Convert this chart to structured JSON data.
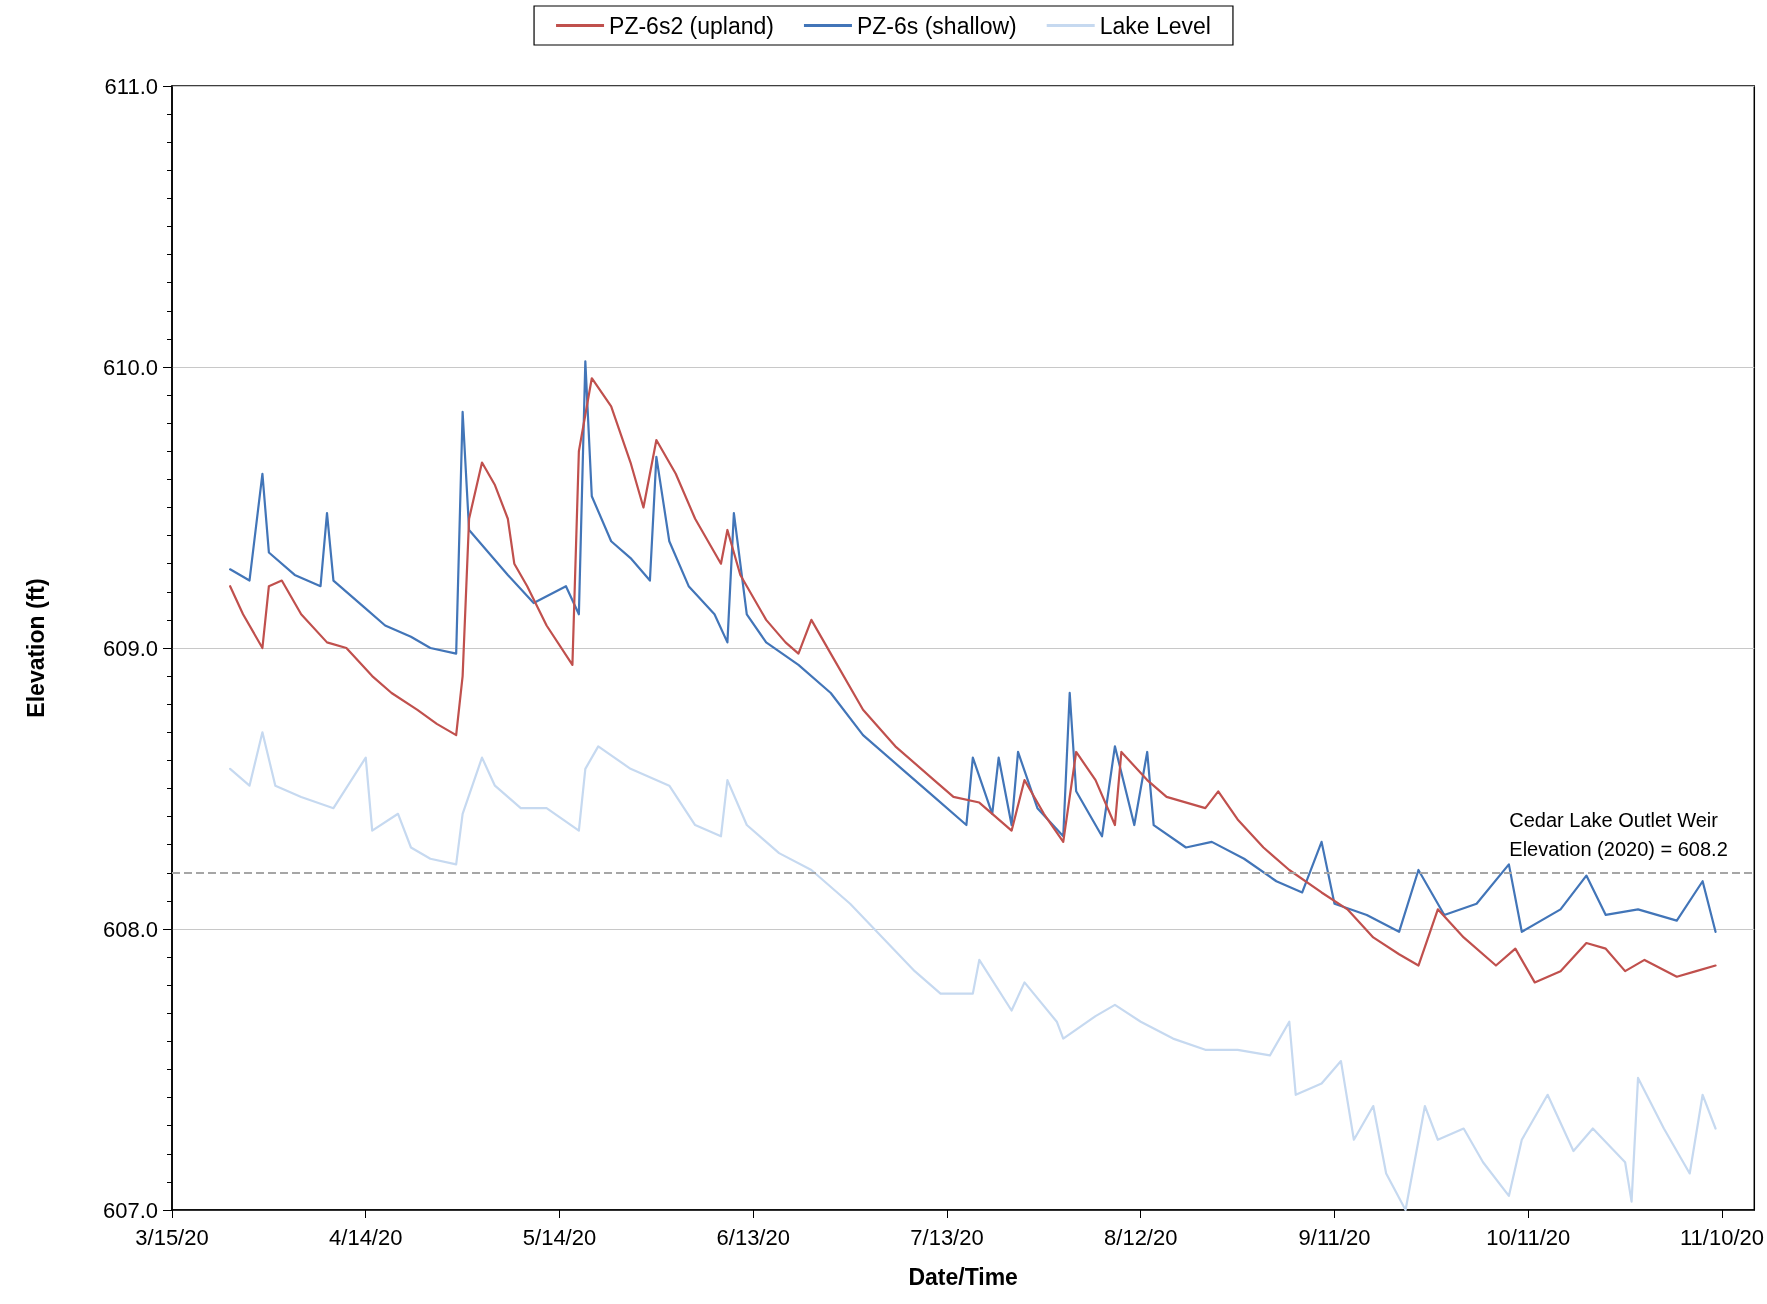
{
  "chart_data": {
    "type": "line",
    "xlabel": "Date/Time",
    "ylabel": "Elevation (ft)",
    "xlim": [
      "2020-03-15",
      "2020-11-15"
    ],
    "xticks": [
      {
        "value": "2020-03-15",
        "label": "3/15/20"
      },
      {
        "value": "2020-04-14",
        "label": "4/14/20"
      },
      {
        "value": "2020-05-14",
        "label": "5/14/20"
      },
      {
        "value": "2020-06-13",
        "label": "6/13/20"
      },
      {
        "value": "2020-07-13",
        "label": "7/13/20"
      },
      {
        "value": "2020-08-12",
        "label": "8/12/20"
      },
      {
        "value": "2020-09-11",
        "label": "9/11/20"
      },
      {
        "value": "2020-10-11",
        "label": "10/11/20"
      },
      {
        "value": "2020-11-10",
        "label": "11/10/20"
      }
    ],
    "ylim": [
      607,
      611
    ],
    "yticks": [
      {
        "value": 607,
        "label": "607.0"
      },
      {
        "value": 608,
        "label": "608.0"
      },
      {
        "value": 609,
        "label": "609.0"
      },
      {
        "value": 610,
        "label": "610.0"
      },
      {
        "value": 611,
        "label": "611.0"
      }
    ],
    "grid": "y",
    "legend": "top",
    "marker": "none",
    "line_style": "solid",
    "ref_lines": [
      {
        "axis": "y",
        "value": 608.2,
        "label": "Cedar Lake Outlet Weir\nElevation (2020) = 608.2",
        "color": "#a6a6a6",
        "line_style": "dashed"
      }
    ],
    "series": [
      {
        "name": "PZ-6s2 (upland)",
        "color": "#c0504d",
        "x": [
          "2020-03-24",
          "2020-03-26",
          "2020-03-29",
          "2020-03-30",
          "2020-04-01",
          "2020-04-04",
          "2020-04-08",
          "2020-04-11",
          "2020-04-15",
          "2020-04-18",
          "2020-04-22",
          "2020-04-25",
          "2020-04-28",
          "2020-04-29",
          "2020-04-30",
          "2020-05-02",
          "2020-05-04",
          "2020-05-06",
          "2020-05-07",
          "2020-05-09",
          "2020-05-12",
          "2020-05-16",
          "2020-05-17",
          "2020-05-19",
          "2020-05-22",
          "2020-05-25",
          "2020-05-27",
          "2020-05-29",
          "2020-06-01",
          "2020-06-04",
          "2020-06-08",
          "2020-06-09",
          "2020-06-11",
          "2020-06-15",
          "2020-06-18",
          "2020-06-20",
          "2020-06-22",
          "2020-06-25",
          "2020-06-30",
          "2020-07-05",
          "2020-07-11",
          "2020-07-14",
          "2020-07-18",
          "2020-07-23",
          "2020-07-25",
          "2020-07-28",
          "2020-07-31",
          "2020-08-02",
          "2020-08-05",
          "2020-08-08",
          "2020-08-09",
          "2020-08-13",
          "2020-08-16",
          "2020-08-22",
          "2020-08-24",
          "2020-08-27",
          "2020-08-31",
          "2020-09-04",
          "2020-09-09",
          "2020-09-13",
          "2020-09-17",
          "2020-09-21",
          "2020-09-24",
          "2020-09-27",
          "2020-10-01",
          "2020-10-06",
          "2020-10-09",
          "2020-10-12",
          "2020-10-16",
          "2020-10-20",
          "2020-10-23",
          "2020-10-26",
          "2020-10-29",
          "2020-11-03",
          "2020-11-06",
          "2020-11-09"
        ],
        "values": [
          609.22,
          609.12,
          609.0,
          609.22,
          609.24,
          609.12,
          609.02,
          609.0,
          608.9,
          608.84,
          608.78,
          608.73,
          608.69,
          608.9,
          609.46,
          609.66,
          609.58,
          609.46,
          609.3,
          609.22,
          609.08,
          608.94,
          609.7,
          609.96,
          609.86,
          609.66,
          609.5,
          609.74,
          609.62,
          609.46,
          609.3,
          609.42,
          609.26,
          609.1,
          609.02,
          608.98,
          609.1,
          608.98,
          608.78,
          608.65,
          608.53,
          608.47,
          608.45,
          608.35,
          608.53,
          608.41,
          608.31,
          608.63,
          608.53,
          608.37,
          608.63,
          608.53,
          608.47,
          608.43,
          608.49,
          608.39,
          608.29,
          608.21,
          608.13,
          608.07,
          607.97,
          607.91,
          607.87,
          608.07,
          607.97,
          607.87,
          607.93,
          607.81,
          607.85,
          607.95,
          607.93,
          607.85,
          607.89,
          607.83,
          607.85,
          607.87
        ]
      },
      {
        "name": "PZ-6s (shallow)",
        "color": "#4275b8",
        "x": [
          "2020-03-24",
          "2020-03-27",
          "2020-03-29",
          "2020-03-30",
          "2020-04-03",
          "2020-04-07",
          "2020-04-08",
          "2020-04-09",
          "2020-04-14",
          "2020-04-17",
          "2020-04-21",
          "2020-04-24",
          "2020-04-28",
          "2020-04-29",
          "2020-04-30",
          "2020-05-03",
          "2020-05-06",
          "2020-05-10",
          "2020-05-15",
          "2020-05-17",
          "2020-05-18",
          "2020-05-19",
          "2020-05-22",
          "2020-05-25",
          "2020-05-28",
          "2020-05-29",
          "2020-05-31",
          "2020-06-03",
          "2020-06-07",
          "2020-06-09",
          "2020-06-10",
          "2020-06-12",
          "2020-06-15",
          "2020-06-20",
          "2020-06-25",
          "2020-06-30",
          "2020-07-06",
          "2020-07-11",
          "2020-07-16",
          "2020-07-17",
          "2020-07-20",
          "2020-07-21",
          "2020-07-23",
          "2020-07-24",
          "2020-07-27",
          "2020-07-31",
          "2020-08-01",
          "2020-08-02",
          "2020-08-06",
          "2020-08-08",
          "2020-08-11",
          "2020-08-13",
          "2020-08-14",
          "2020-08-19",
          "2020-08-23",
          "2020-08-28",
          "2020-09-02",
          "2020-09-06",
          "2020-09-09",
          "2020-09-11",
          "2020-09-16",
          "2020-09-21",
          "2020-09-24",
          "2020-09-28",
          "2020-10-03",
          "2020-10-08",
          "2020-10-10",
          "2020-10-16",
          "2020-10-20",
          "2020-10-23",
          "2020-10-28",
          "2020-11-03",
          "2020-11-07",
          "2020-11-09"
        ],
        "values": [
          609.28,
          609.24,
          609.62,
          609.34,
          609.26,
          609.22,
          609.48,
          609.24,
          609.14,
          609.08,
          609.04,
          609.0,
          608.98,
          609.84,
          609.42,
          609.34,
          609.26,
          609.16,
          609.22,
          609.12,
          610.02,
          609.54,
          609.38,
          609.32,
          609.24,
          609.68,
          609.38,
          609.22,
          609.12,
          609.02,
          609.48,
          609.12,
          609.02,
          608.94,
          608.84,
          608.69,
          608.57,
          608.47,
          608.37,
          608.61,
          608.41,
          608.61,
          608.37,
          608.63,
          608.43,
          608.33,
          608.84,
          608.49,
          608.33,
          608.65,
          608.37,
          608.63,
          608.37,
          608.29,
          608.31,
          608.25,
          608.17,
          608.13,
          608.31,
          608.09,
          608.05,
          607.99,
          608.21,
          608.05,
          608.09,
          608.23,
          607.99,
          608.07,
          608.19,
          608.05,
          608.07,
          608.03,
          608.17,
          607.99
        ]
      },
      {
        "name": "Lake Level",
        "color": "#c6d9f0",
        "x": [
          "2020-03-24",
          "2020-03-27",
          "2020-03-29",
          "2020-03-31",
          "2020-04-04",
          "2020-04-09",
          "2020-04-14",
          "2020-04-15",
          "2020-04-19",
          "2020-04-21",
          "2020-04-24",
          "2020-04-28",
          "2020-04-29",
          "2020-05-02",
          "2020-05-04",
          "2020-05-08",
          "2020-05-12",
          "2020-05-17",
          "2020-05-18",
          "2020-05-20",
          "2020-05-25",
          "2020-05-31",
          "2020-06-04",
          "2020-06-08",
          "2020-06-09",
          "2020-06-12",
          "2020-06-17",
          "2020-06-22",
          "2020-06-28",
          "2020-07-03",
          "2020-07-08",
          "2020-07-12",
          "2020-07-17",
          "2020-07-18",
          "2020-07-23",
          "2020-07-25",
          "2020-07-30",
          "2020-07-31",
          "2020-08-05",
          "2020-08-08",
          "2020-08-12",
          "2020-08-17",
          "2020-08-22",
          "2020-08-27",
          "2020-09-01",
          "2020-09-04",
          "2020-09-05",
          "2020-09-09",
          "2020-09-12",
          "2020-09-14",
          "2020-09-17",
          "2020-09-19",
          "2020-09-22",
          "2020-09-25",
          "2020-09-27",
          "2020-10-01",
          "2020-10-04",
          "2020-10-08",
          "2020-10-10",
          "2020-10-14",
          "2020-10-18",
          "2020-10-21",
          "2020-10-26",
          "2020-10-27",
          "2020-10-28",
          "2020-11-01",
          "2020-11-05",
          "2020-11-07",
          "2020-11-09"
        ],
        "values": [
          608.57,
          608.51,
          608.7,
          608.51,
          608.47,
          608.43,
          608.61,
          608.35,
          608.41,
          608.29,
          608.25,
          608.23,
          608.41,
          608.61,
          608.51,
          608.43,
          608.43,
          608.35,
          608.57,
          608.65,
          608.57,
          608.51,
          608.37,
          608.33,
          608.53,
          608.37,
          608.27,
          608.21,
          608.09,
          607.97,
          607.85,
          607.77,
          607.77,
          607.89,
          607.71,
          607.81,
          607.67,
          607.61,
          607.69,
          607.73,
          607.67,
          607.61,
          607.57,
          607.57,
          607.55,
          607.67,
          607.41,
          607.45,
          607.53,
          607.25,
          607.37,
          607.13,
          607.0,
          607.37,
          607.25,
          607.29,
          607.17,
          607.05,
          607.25,
          607.41,
          607.21,
          607.29,
          607.17,
          607.03,
          607.47,
          607.29,
          607.13,
          607.41,
          607.29
        ]
      }
    ]
  }
}
